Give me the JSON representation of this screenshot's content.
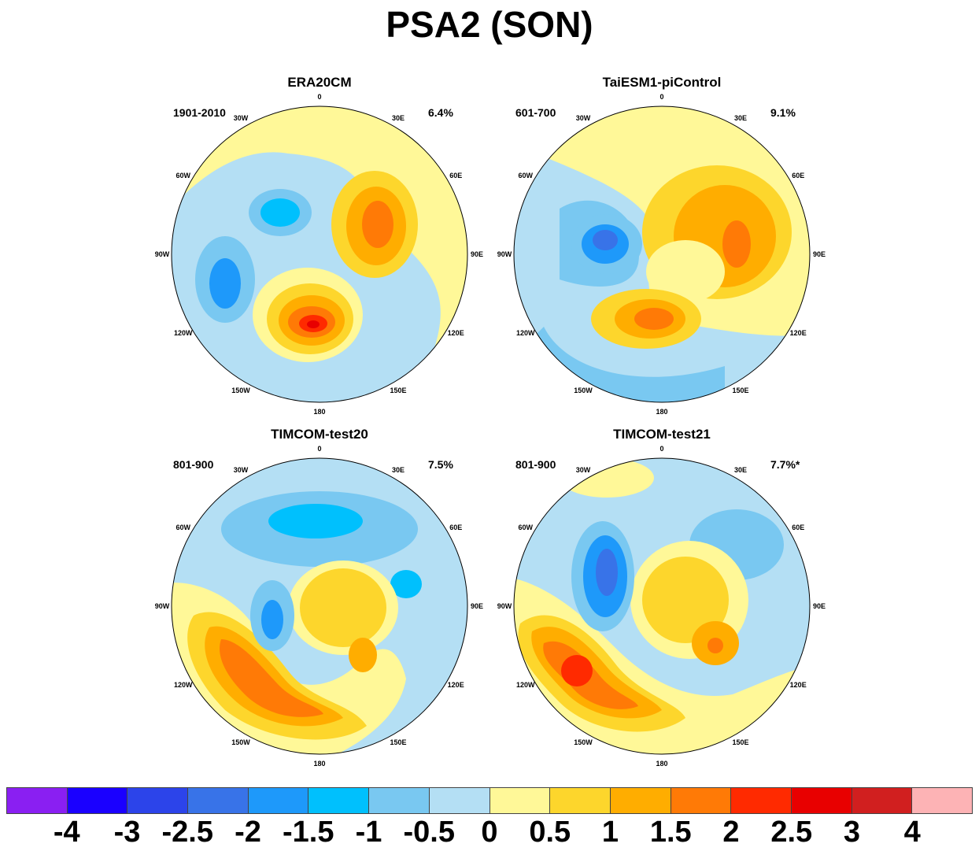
{
  "title": "PSA2 (SON)",
  "lon_labels": [
    "0",
    "30E",
    "60E",
    "90E",
    "120E",
    "150E",
    "180",
    "150W",
    "120W",
    "90W",
    "60W",
    "30W"
  ],
  "panels": [
    {
      "title": "ERA20CM",
      "period": "1901-2010",
      "variance": "6.4%"
    },
    {
      "title": "TaiESM1-piControl",
      "period": "601-700",
      "variance": "9.1%"
    },
    {
      "title": "TIMCOM-test20",
      "period": "801-900",
      "variance": "7.5%"
    },
    {
      "title": "TIMCOM-test21",
      "period": "801-900",
      "variance": "7.7%*"
    }
  ],
  "colorbar": {
    "labels": [
      "-4",
      "-3",
      "-2.5",
      "-2",
      "-1.5",
      "-1",
      "-0.5",
      "0",
      "0.5",
      "1",
      "1.5",
      "2",
      "2.5",
      "3",
      "4"
    ],
    "colors": [
      "#8a1ff2",
      "#1a00ff",
      "#2c44ea",
      "#3873e8",
      "#1e99fa",
      "#00c0fd",
      "#79c8f1",
      "#b4dff4",
      "#fff898",
      "#fdd62c",
      "#ffad00",
      "#ff7a06",
      "#ff2a00",
      "#e80000",
      "#d11f1f",
      "#fdb3b5"
    ]
  }
}
